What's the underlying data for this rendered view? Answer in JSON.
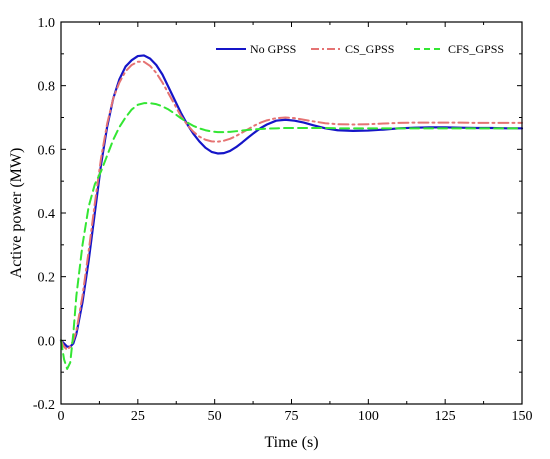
{
  "chart_data": {
    "type": "line",
    "title": "",
    "xlabel": "Time (s)",
    "ylabel": "Active power (MW)",
    "xlim": [
      0,
      150
    ],
    "ylim": [
      -0.2,
      1.0
    ],
    "x_ticks": [
      "0",
      "25",
      "50",
      "75",
      "100",
      "125",
      "150"
    ],
    "y_ticks": [
      "-0.2",
      "0.0",
      "0.2",
      "0.4",
      "0.6",
      "0.8",
      "1.0"
    ],
    "grid": false,
    "legend_position": "top-right",
    "series": [
      {
        "name": "No GPSS",
        "color": "#1515c8",
        "dash": "solid",
        "x": [
          0,
          1,
          2,
          3,
          4,
          5,
          7,
          9,
          11,
          13,
          15,
          17,
          19,
          21,
          23,
          25,
          27,
          29,
          31,
          33,
          35,
          37,
          39,
          41,
          43,
          45,
          47,
          49,
          51,
          53,
          55,
          57,
          59,
          61,
          63,
          65,
          67,
          70,
          73,
          76,
          79,
          82,
          86,
          90,
          95,
          100,
          105,
          110,
          115,
          120,
          125,
          130,
          135,
          140,
          145,
          150
        ],
        "values": [
          0.0,
          -0.01,
          -0.02,
          -0.02,
          -0.01,
          0.02,
          0.12,
          0.25,
          0.4,
          0.55,
          0.67,
          0.76,
          0.82,
          0.86,
          0.88,
          0.893,
          0.895,
          0.885,
          0.865,
          0.835,
          0.795,
          0.755,
          0.715,
          0.68,
          0.65,
          0.625,
          0.605,
          0.592,
          0.587,
          0.588,
          0.595,
          0.607,
          0.622,
          0.638,
          0.653,
          0.667,
          0.678,
          0.69,
          0.693,
          0.69,
          0.684,
          0.676,
          0.666,
          0.66,
          0.658,
          0.659,
          0.662,
          0.666,
          0.668,
          0.669,
          0.669,
          0.668,
          0.667,
          0.667,
          0.666,
          0.666
        ]
      },
      {
        "name": "CS_GPSS",
        "color": "#e57373",
        "dash": "dashdot",
        "x": [
          0,
          1,
          2,
          3,
          4,
          5,
          7,
          9,
          11,
          13,
          15,
          17,
          19,
          21,
          23,
          25,
          27,
          29,
          31,
          33,
          35,
          37,
          39,
          41,
          43,
          45,
          47,
          49,
          51,
          53,
          55,
          57,
          59,
          61,
          63,
          65,
          67,
          70,
          73,
          76,
          79,
          82,
          86,
          90,
          95,
          100,
          105,
          110,
          115,
          120,
          125,
          130,
          135,
          140,
          145,
          150
        ],
        "values": [
          0.0,
          -0.02,
          -0.03,
          -0.02,
          0.0,
          0.03,
          0.14,
          0.28,
          0.43,
          0.57,
          0.68,
          0.76,
          0.81,
          0.845,
          0.865,
          0.875,
          0.875,
          0.862,
          0.84,
          0.81,
          0.775,
          0.74,
          0.705,
          0.678,
          0.656,
          0.64,
          0.63,
          0.625,
          0.624,
          0.627,
          0.633,
          0.642,
          0.653,
          0.664,
          0.675,
          0.684,
          0.691,
          0.698,
          0.7,
          0.698,
          0.693,
          0.688,
          0.682,
          0.679,
          0.678,
          0.679,
          0.681,
          0.683,
          0.684,
          0.684,
          0.684,
          0.684,
          0.683,
          0.683,
          0.683,
          0.683
        ]
      },
      {
        "name": "CFS_GPSS",
        "color": "#33e633",
        "dash": "dashed",
        "x": [
          0,
          1,
          2,
          3,
          4,
          5,
          7,
          9,
          11,
          13,
          15,
          17,
          19,
          21,
          23,
          25,
          27,
          29,
          31,
          33,
          35,
          37,
          39,
          41,
          43,
          45,
          47,
          49,
          51,
          53,
          55,
          57,
          59,
          61,
          63,
          65,
          67,
          70,
          73,
          76,
          79,
          82,
          86,
          90,
          95,
          100,
          105,
          110,
          115,
          120,
          125,
          130,
          135,
          140,
          145,
          150
        ],
        "values": [
          0.0,
          -0.06,
          -0.09,
          -0.07,
          0.02,
          0.14,
          0.3,
          0.42,
          0.49,
          0.53,
          0.58,
          0.63,
          0.67,
          0.7,
          0.725,
          0.74,
          0.745,
          0.745,
          0.742,
          0.735,
          0.725,
          0.712,
          0.698,
          0.685,
          0.674,
          0.666,
          0.66,
          0.656,
          0.654,
          0.654,
          0.655,
          0.657,
          0.659,
          0.661,
          0.663,
          0.664,
          0.665,
          0.666,
          0.667,
          0.667,
          0.667,
          0.667,
          0.667,
          0.666,
          0.666,
          0.666,
          0.666,
          0.666,
          0.666,
          0.666,
          0.666,
          0.666,
          0.666,
          0.666,
          0.666,
          0.666
        ]
      }
    ]
  }
}
